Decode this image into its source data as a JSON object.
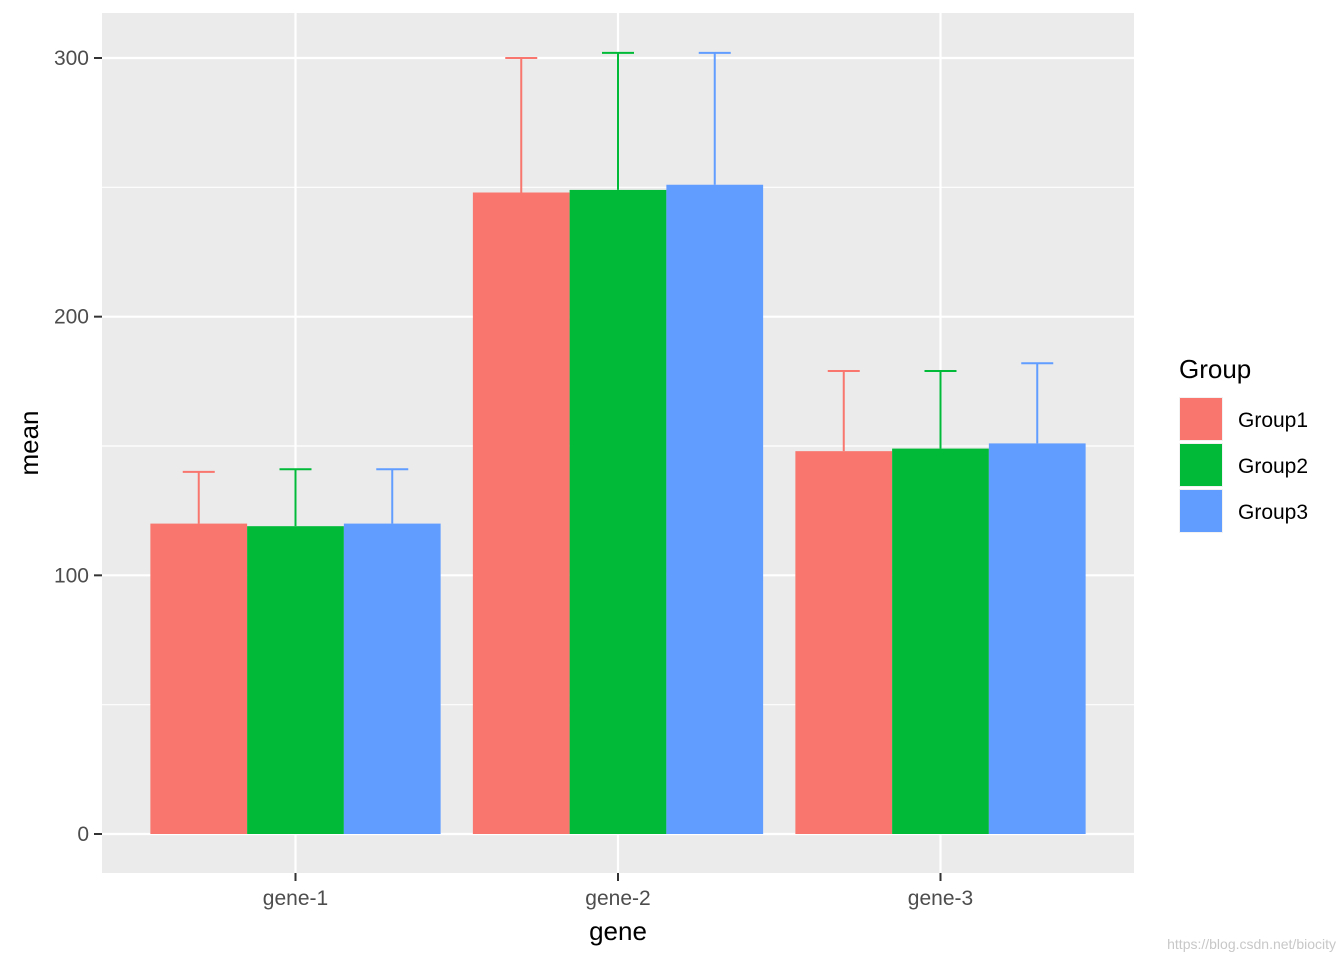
{
  "chart_data": {
    "type": "bar",
    "title": "",
    "xlabel": "gene",
    "ylabel": "mean",
    "categories": [
      "gene-1",
      "gene-2",
      "gene-3"
    ],
    "series": [
      {
        "name": "Group1",
        "color": "#F8766D",
        "values": [
          120,
          248,
          148
        ],
        "error_upper": [
          140,
          300,
          179
        ]
      },
      {
        "name": "Group2",
        "color": "#00BA38",
        "values": [
          119,
          249,
          149
        ],
        "error_upper": [
          141,
          302,
          179
        ]
      },
      {
        "name": "Group3",
        "color": "#619CFF",
        "values": [
          120,
          251,
          151
        ],
        "error_upper": [
          141,
          302,
          182
        ]
      }
    ],
    "ylim": [
      -15,
      315
    ],
    "y_ticks": [
      0,
      100,
      200,
      300
    ],
    "y_tick_labels": [
      "0",
      "100",
      "200",
      "300"
    ],
    "grid": true,
    "legend": {
      "title": "Group",
      "position": "right"
    }
  },
  "watermark": "https://blog.csdn.net/biocity"
}
